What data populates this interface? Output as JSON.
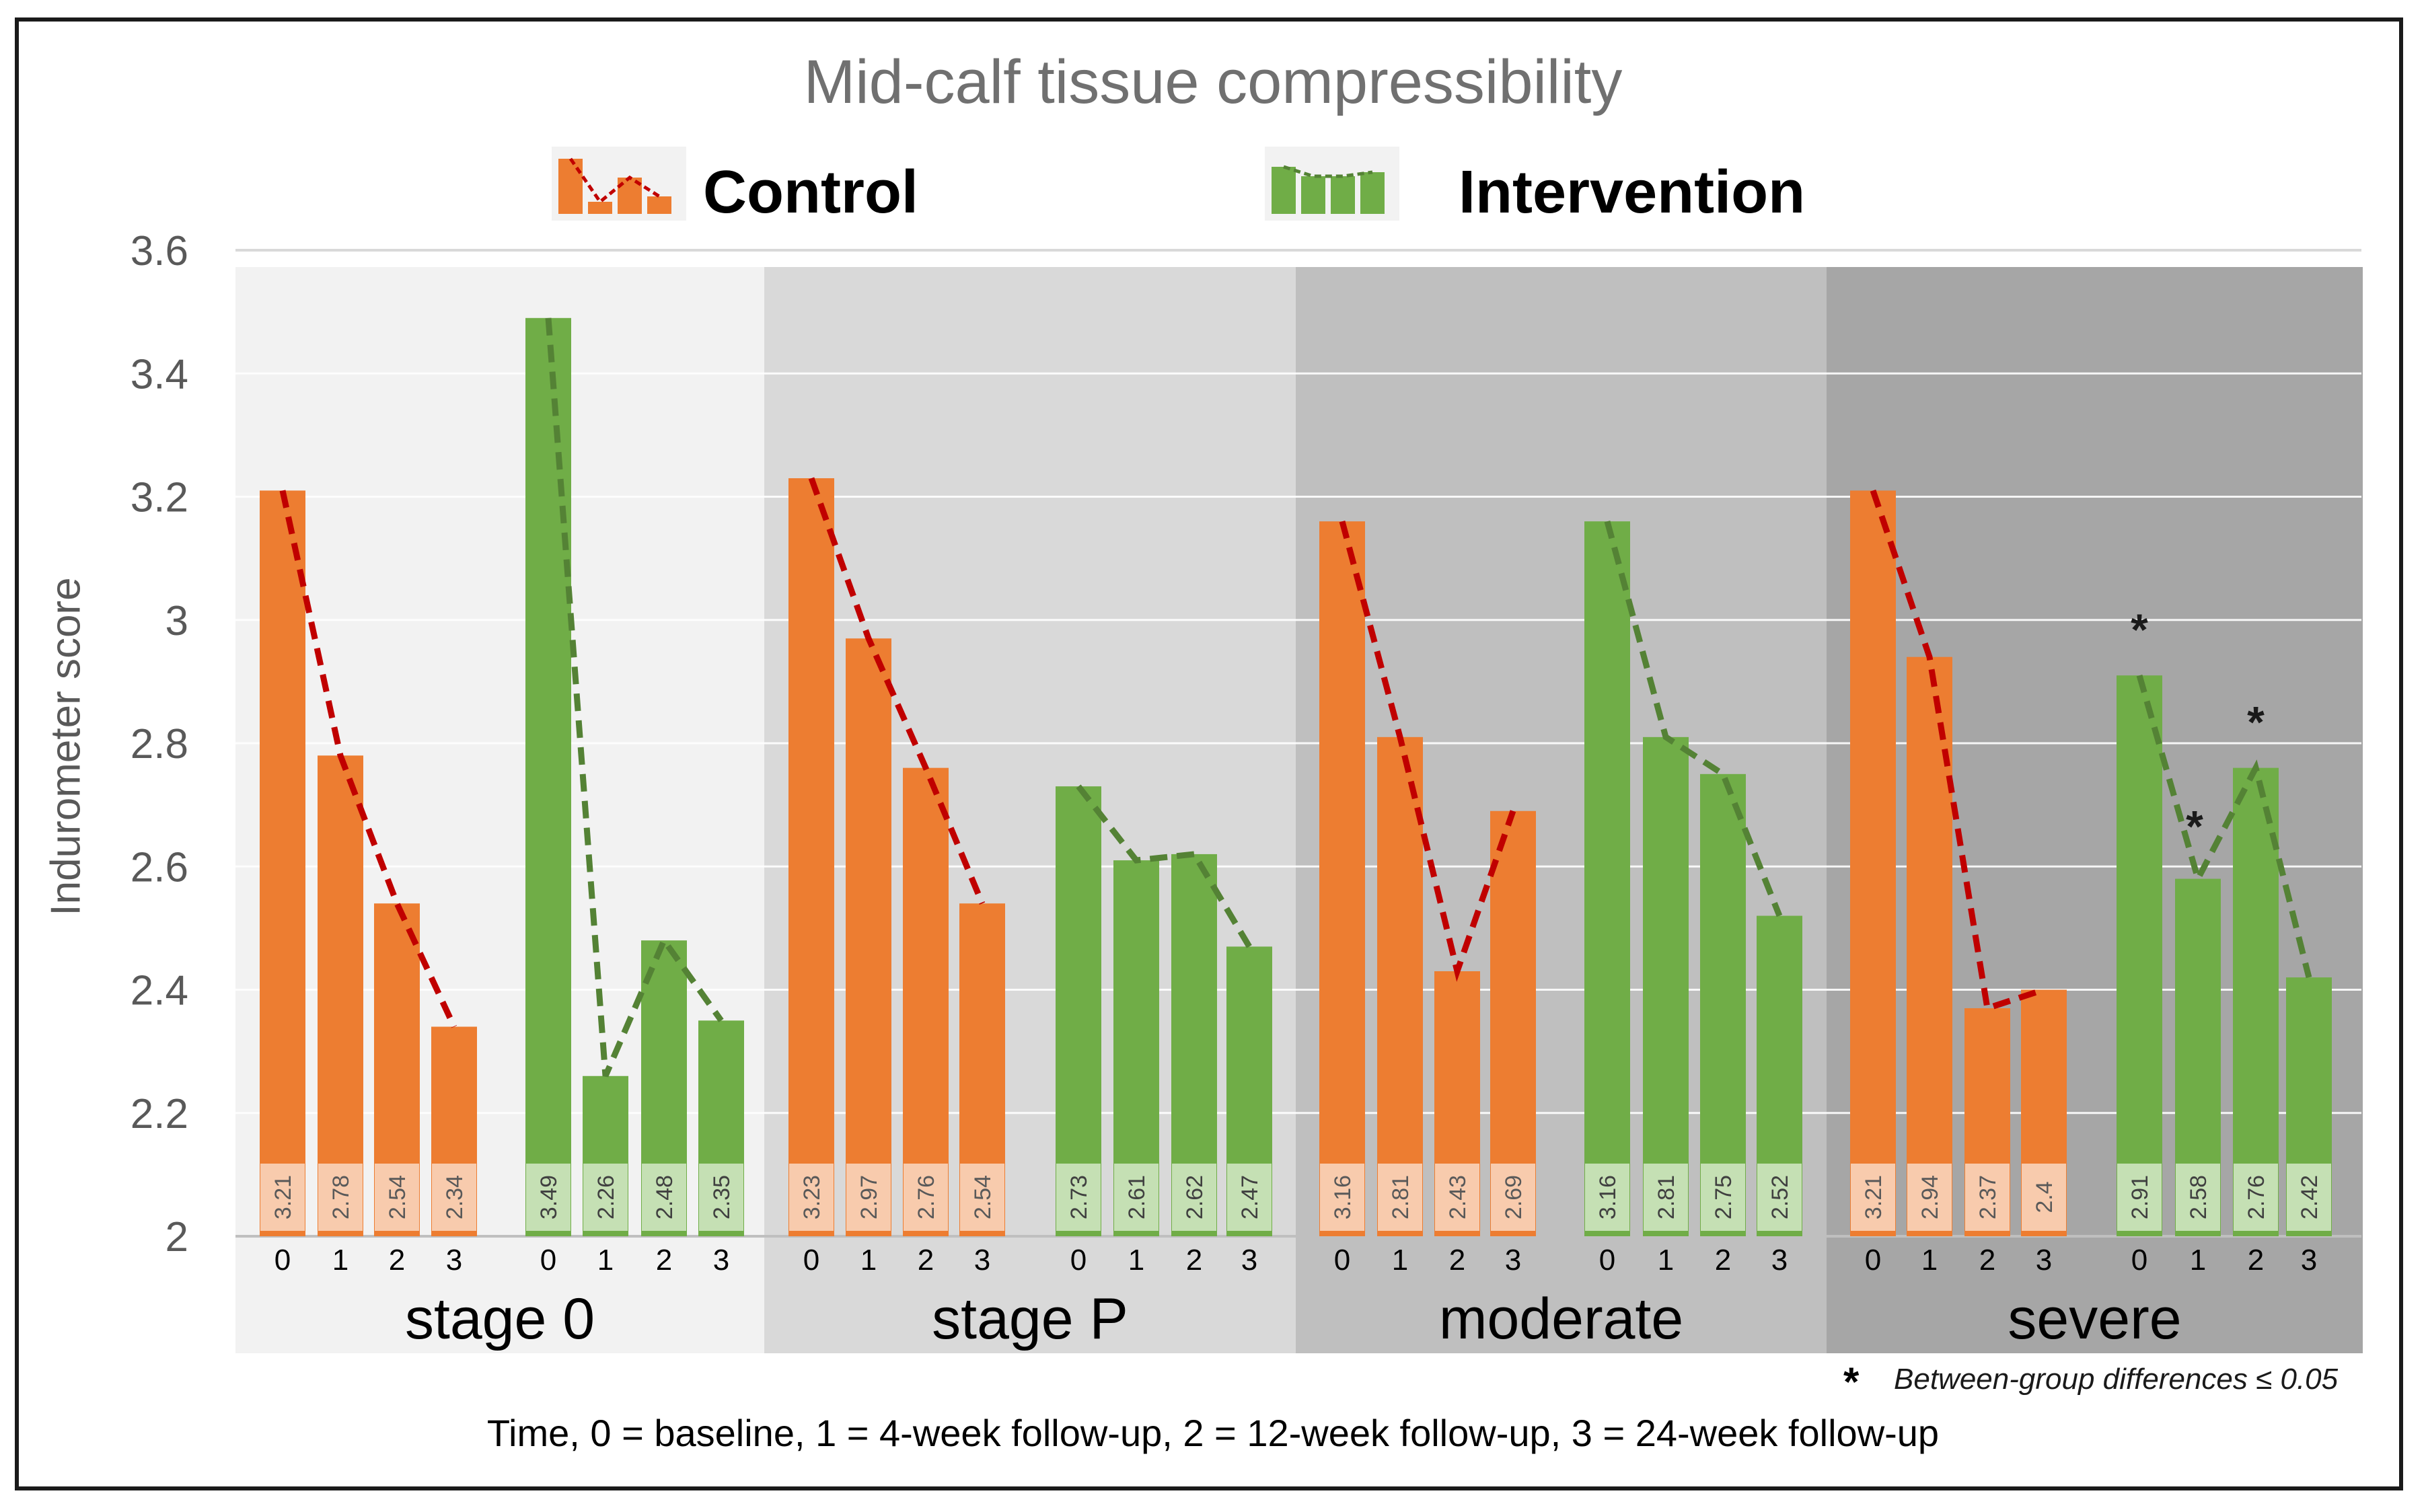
{
  "chart_data": {
    "type": "bar",
    "title": "Mid-calf tissue compressibility",
    "ylabel": "Indurometer score",
    "xlabel": "Time, 0 = baseline, 1 = 4-week follow-up, 2 = 12-week follow-up, 3 = 24-week follow-up",
    "ylim": [
      2,
      3.6
    ],
    "yticks": [
      "2",
      "2.2",
      "2.4",
      "2.6",
      "2.8",
      "3",
      "3.2",
      "3.4",
      "3.6"
    ],
    "categories": [
      "0",
      "1",
      "2",
      "3"
    ],
    "legend": [
      {
        "name": "Control",
        "color": "#ED7D31"
      },
      {
        "name": "Intervention",
        "color": "#70AD47"
      }
    ],
    "panels": [
      {
        "name": "stage 0",
        "control": {
          "values": [
            3.21,
            2.78,
            2.54,
            2.34
          ],
          "labels": [
            "3.21",
            "2.78",
            "2.54",
            "2.34"
          ]
        },
        "intervention": {
          "values": [
            3.49,
            2.26,
            2.48,
            2.35
          ],
          "labels": [
            "3.49",
            "2.26",
            "2.48",
            "2.35"
          ]
        }
      },
      {
        "name": "stage P",
        "control": {
          "values": [
            3.23,
            2.97,
            2.76,
            2.54
          ],
          "labels": [
            "3.23",
            "2.97",
            "2.76",
            "2.54"
          ]
        },
        "intervention": {
          "values": [
            2.73,
            2.61,
            2.62,
            2.47
          ],
          "labels": [
            "2.73",
            "2.61",
            "2.62",
            "2.47"
          ]
        }
      },
      {
        "name": "moderate",
        "control": {
          "values": [
            3.16,
            2.81,
            2.43,
            2.69
          ],
          "labels": [
            "3.16",
            "2.81",
            "2.43",
            "2.69"
          ]
        },
        "intervention": {
          "values": [
            3.16,
            2.81,
            2.75,
            2.52
          ],
          "labels": [
            "3.16",
            "2.81",
            "2.75",
            "2.52"
          ]
        }
      },
      {
        "name": "severe",
        "control": {
          "values": [
            3.21,
            2.94,
            2.37,
            2.4
          ],
          "labels": [
            "3.21",
            "2.94",
            "2.37",
            "2.4"
          ]
        },
        "intervention": {
          "values": [
            2.91,
            2.58,
            2.76,
            2.42
          ],
          "labels": [
            "2.91",
            "2.58",
            "2.76",
            "2.42"
          ]
        },
        "significant": [
          "0",
          "1",
          "2"
        ]
      }
    ],
    "annotation": "Between-group differences ≤ 0.05",
    "annotation_marker": "*"
  },
  "colors": {
    "control": "#ED7D31",
    "intervention": "#70AD47",
    "control_trend": "#C00000",
    "intervention_trend": "#548235",
    "panel_backgrounds": [
      "#F2F2F2",
      "#D9D9D9",
      "#BFBFBF",
      "#A6A6A6"
    ]
  }
}
